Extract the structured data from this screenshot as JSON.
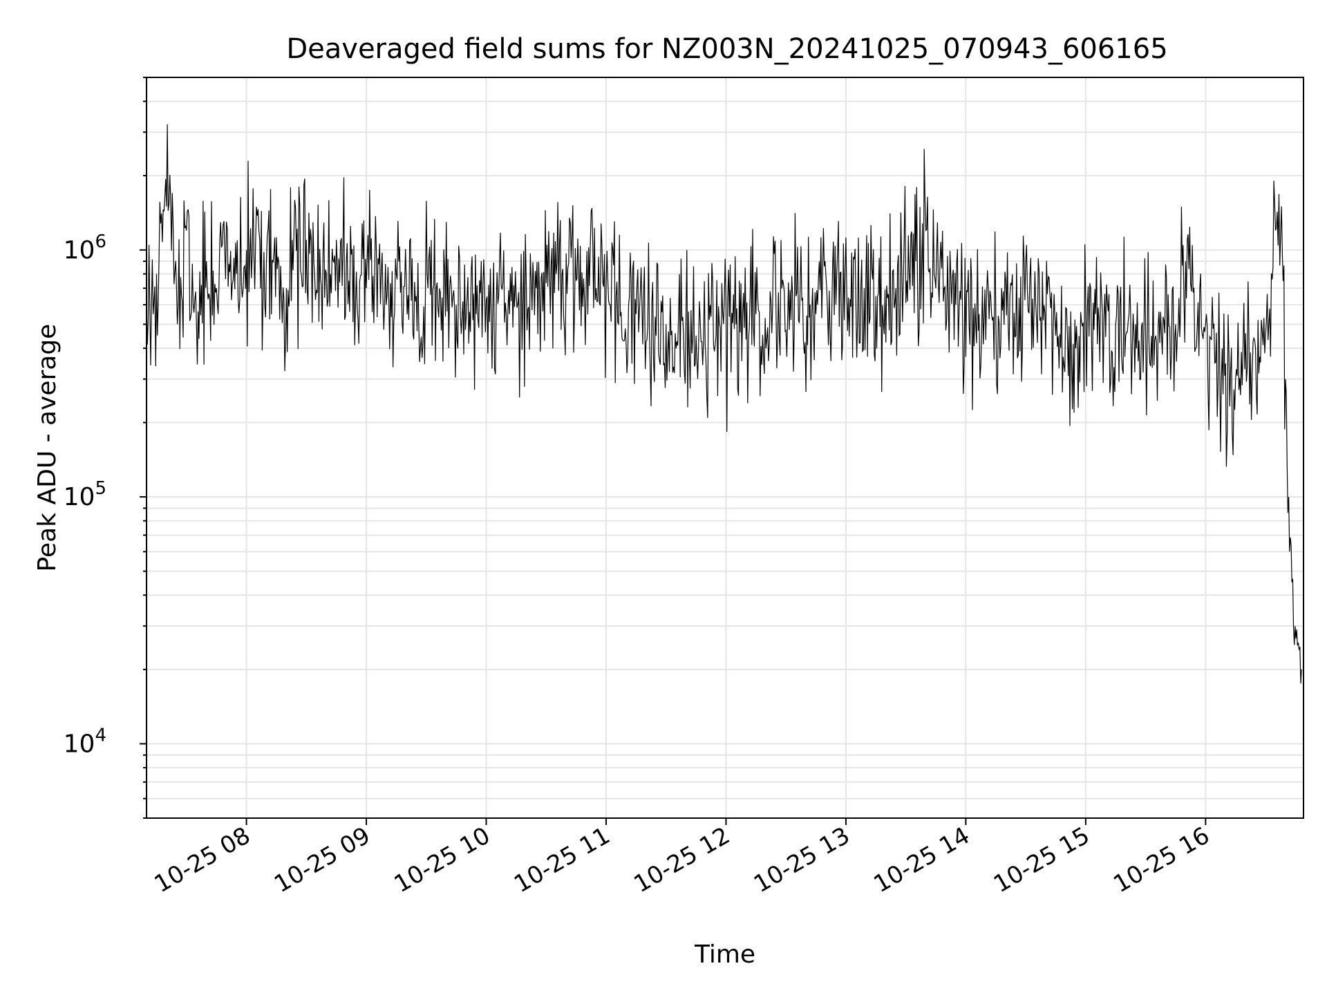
{
  "chart_data": {
    "type": "line",
    "title": "Deaveraged field sums for NZ003N_20241025_070943_606165",
    "xlabel": "Time",
    "ylabel": "Peak ADU - average",
    "x_range": [
      "2024-10-25 07:10",
      "2024-10-25 16:49"
    ],
    "ylim": [
      5000,
      5000000
    ],
    "yscale": "log",
    "y_ticks": [
      {
        "value": 10000,
        "base": "10",
        "exp": "4"
      },
      {
        "value": 100000,
        "base": "10",
        "exp": "5"
      },
      {
        "value": 1000000,
        "base": "10",
        "exp": "6"
      }
    ],
    "x_ticks": [
      {
        "value": "2024-10-25 08:00",
        "label": "10-25 08"
      },
      {
        "value": "2024-10-25 09:00",
        "label": "10-25 09"
      },
      {
        "value": "2024-10-25 10:00",
        "label": "10-25 10"
      },
      {
        "value": "2024-10-25 11:00",
        "label": "10-25 11"
      },
      {
        "value": "2024-10-25 12:00",
        "label": "10-25 12"
      },
      {
        "value": "2024-10-25 13:00",
        "label": "10-25 13"
      },
      {
        "value": "2024-10-25 14:00",
        "label": "10-25 14"
      },
      {
        "value": "2024-10-25 15:00",
        "label": "10-25 15"
      },
      {
        "value": "2024-10-25 16:00",
        "label": "10-25 16"
      }
    ],
    "grid": true,
    "line_color": "#000000",
    "grid_color": "#e5e5e5",
    "series": [
      {
        "x": [
          "2024-10-25 07:10",
          "2024-10-25 07:15",
          "2024-10-25 07:20",
          "2024-10-25 07:25",
          "2024-10-25 07:30",
          "2024-10-25 07:35",
          "2024-10-25 07:40",
          "2024-10-25 07:45",
          "2024-10-25 07:50",
          "2024-10-25 07:55",
          "2024-10-25 08:00",
          "2024-10-25 08:10",
          "2024-10-25 08:20",
          "2024-10-25 08:30",
          "2024-10-25 08:40",
          "2024-10-25 08:50",
          "2024-10-25 09:00",
          "2024-10-25 09:05",
          "2024-10-25 09:10",
          "2024-10-25 09:15",
          "2024-10-25 09:25",
          "2024-10-25 09:35",
          "2024-10-25 09:45",
          "2024-10-25 09:55",
          "2024-10-25 10:05",
          "2024-10-25 10:15",
          "2024-10-25 10:25",
          "2024-10-25 10:35",
          "2024-10-25 10:45",
          "2024-10-25 10:55",
          "2024-10-25 11:05",
          "2024-10-25 11:15",
          "2024-10-25 11:25",
          "2024-10-25 11:30",
          "2024-10-25 11:35",
          "2024-10-25 11:45",
          "2024-10-25 11:50",
          "2024-10-25 11:55",
          "2024-10-25 12:05",
          "2024-10-25 12:15",
          "2024-10-25 12:20",
          "2024-10-25 12:25",
          "2024-10-25 12:35",
          "2024-10-25 12:45",
          "2024-10-25 12:55",
          "2024-10-25 13:05",
          "2024-10-25 13:15",
          "2024-10-25 13:25",
          "2024-10-25 13:35",
          "2024-10-25 13:40",
          "2024-10-25 13:45",
          "2024-10-25 13:55",
          "2024-10-25 14:05",
          "2024-10-25 14:15",
          "2024-10-25 14:25",
          "2024-10-25 14:30",
          "2024-10-25 14:35",
          "2024-10-25 14:45",
          "2024-10-25 14:55",
          "2024-10-25 15:05",
          "2024-10-25 15:15",
          "2024-10-25 15:25",
          "2024-10-25 15:35",
          "2024-10-25 15:45",
          "2024-10-25 15:50",
          "2024-10-25 15:55",
          "2024-10-25 16:00",
          "2024-10-25 16:05",
          "2024-10-25 16:15",
          "2024-10-25 16:25",
          "2024-10-25 16:30",
          "2024-10-25 16:35",
          "2024-10-25 16:38",
          "2024-10-25 16:40",
          "2024-10-25 16:42",
          "2024-10-25 16:44",
          "2024-10-25 16:46",
          "2024-10-25 16:48"
        ],
        "y": [
          600000,
          800000,
          1500000,
          700000,
          1200000,
          500000,
          900000,
          700000,
          1300000,
          800000,
          1000000,
          900000,
          700000,
          1100000,
          800000,
          900000,
          700000,
          1000000,
          600000,
          800000,
          650000,
          700000,
          600000,
          550000,
          600000,
          650000,
          700000,
          800000,
          750000,
          700000,
          650000,
          550000,
          450000,
          500000,
          400000,
          450000,
          350000,
          450000,
          500000,
          550000,
          400000,
          600000,
          650000,
          550000,
          600000,
          600000,
          650000,
          700000,
          900000,
          1200000,
          700000,
          600000,
          500000,
          550000,
          450000,
          900000,
          600000,
          450000,
          400000,
          550000,
          500000,
          500000,
          450000,
          500000,
          900000,
          400000,
          500000,
          350000,
          300000,
          400000,
          450000,
          1200000,
          1500000,
          300000,
          60000,
          30000,
          25000,
          20000
        ]
      }
    ]
  }
}
